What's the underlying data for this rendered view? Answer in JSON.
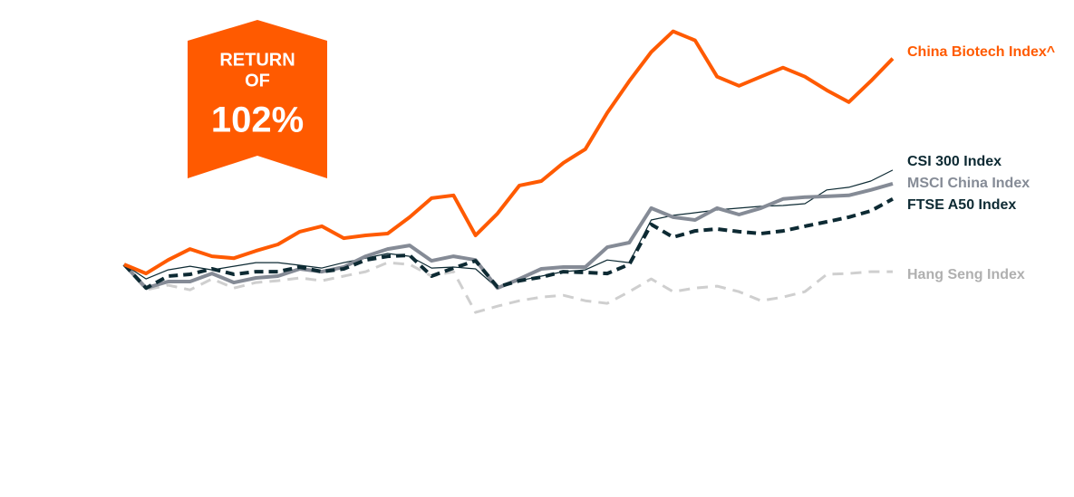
{
  "chart_data": {
    "type": "line",
    "annotation": {
      "lines": [
        "RETURN",
        "OF"
      ],
      "value_text": "102%"
    },
    "categories": [
      null,
      null,
      null,
      null,
      null,
      null,
      null,
      null,
      null,
      null,
      null,
      null,
      null,
      null,
      null,
      null,
      null,
      null,
      null,
      null,
      null,
      null,
      null,
      null,
      null,
      null,
      null,
      null,
      null,
      null,
      null,
      null,
      null,
      null,
      null,
      null
    ],
    "ylim": [
      -113,
      131
    ],
    "series": [
      {
        "name": "Hang Seng Index",
        "color": "#cfcfcf",
        "dashed": true,
        "values": [
          0,
          -12.6,
          -10.3,
          -12.6,
          -7.2,
          -11.7,
          -9.0,
          -8.1,
          -6.7,
          -8.1,
          -5.8,
          -3.6,
          0.9,
          0,
          -5.8,
          -3.6,
          -23.8,
          -20.7,
          -18.0,
          -16.2,
          -15.3,
          -18.0,
          -19.3,
          -13.5,
          -7.2,
          -13.5,
          -11.7,
          -10.8,
          -13.5,
          -18.0,
          -16.2,
          -13.5,
          -4.9,
          -4.5,
          -3.6,
          -3.6
        ]
      },
      {
        "name": "CSI 300 Index",
        "color": "#0d2a33",
        "dashed": false,
        "values": [
          0,
          -7.2,
          -2.7,
          -0.9,
          -2.7,
          -0.9,
          0.9,
          0.9,
          -0.4,
          -1.8,
          0.9,
          3.1,
          5.4,
          4.0,
          -1.8,
          -1.3,
          -2.2,
          -11.7,
          -8.1,
          -5.8,
          -3.6,
          -2.7,
          2.2,
          0.9,
          22.0,
          24.3,
          25.6,
          27.0,
          27.9,
          28.8,
          29.2,
          30.1,
          36.9,
          38.2,
          41.3,
          46.7
        ]
      },
      {
        "name": "MSCI China Index",
        "color": "#858b96",
        "dashed": false,
        "values": [
          0,
          -11.7,
          -8.5,
          -8.5,
          -4.5,
          -9.0,
          -6.7,
          -5.8,
          -2.2,
          -3.6,
          -1.3,
          4.0,
          7.6,
          9.4,
          1.8,
          4.0,
          2.2,
          -11.7,
          -7.2,
          -2.2,
          -1.3,
          -1.3,
          8.5,
          10.8,
          27.9,
          23.4,
          22.0,
          27.9,
          24.7,
          27.9,
          32.4,
          33.3,
          33.7,
          34.2,
          36.9,
          40.0
        ]
      },
      {
        "name": "FTSE A50 Index",
        "color": "#0d2a33",
        "dashed": true,
        "values": [
          0,
          -11.7,
          -5.8,
          -4.9,
          -2.2,
          -4.9,
          -3.6,
          -3.6,
          -1.3,
          -3.6,
          -2.2,
          2.2,
          4.0,
          4.5,
          -5.8,
          -1.8,
          1.8,
          -11.2,
          -8.1,
          -6.3,
          -3.6,
          -4.0,
          -4.5,
          0,
          19.8,
          13.5,
          16.6,
          17.5,
          16.2,
          15.3,
          16.6,
          18.9,
          21.1,
          23.4,
          26.5,
          32.4
        ]
      },
      {
        "name": "China Biotech Index^",
        "color": "#ff5a00",
        "dashed": false,
        "values": [
          0,
          -4.5,
          2.2,
          7.6,
          4.0,
          3.1,
          6.7,
          9.9,
          16.2,
          18.9,
          13.0,
          14.4,
          15.3,
          23.4,
          32.8,
          34.2,
          14.4,
          25.2,
          39.1,
          41.3,
          50.3,
          57.1,
          75.1,
          90.8,
          105.2,
          115.5,
          111.0,
          93.0,
          88.5,
          93.0,
          97.5,
          93.0,
          86.3,
          80.4,
          90.8,
          102.0
        ]
      }
    ]
  }
}
